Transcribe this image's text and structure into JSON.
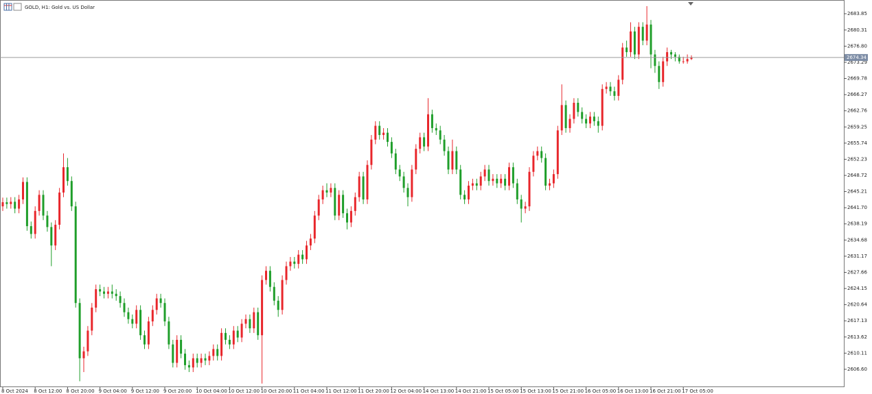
{
  "chart_data": {
    "type": "candlestick",
    "title": "GOLD, H1:  Gold vs. US Dollar",
    "up_color": "#e8262b",
    "down_color": "#1f9e2a",
    "price_line_color": "#9a9a9a",
    "current_price": 2674.34,
    "ylim": [
      2602.72,
      2686.83
    ],
    "yticks": [
      2683.85,
      2680.31,
      {
        "value": 2676.8,
        "label": "2676.80"
      },
      2673.29,
      2669.78,
      2666.27,
      2662.76,
      2659.25,
      2655.74,
      2652.23,
      2648.72,
      2645.21,
      {
        "value": 2641.7,
        "label": "2641.70"
      },
      2638.19,
      2634.68,
      2631.17,
      2627.66,
      2624.15,
      2620.64,
      2617.13,
      2613.62,
      2610.11,
      {
        "value": 2606.6,
        "label": "2606.60"
      }
    ],
    "categories": [
      "8 Oct 2024",
      null,
      null,
      null,
      null,
      null,
      null,
      null,
      "8 Oct 12:00",
      null,
      null,
      null,
      null,
      null,
      null,
      null,
      "8 Oct 20:00",
      null,
      null,
      null,
      null,
      null,
      null,
      null,
      "9 Oct 04:00",
      null,
      null,
      null,
      null,
      null,
      null,
      null,
      "9 Oct 12:00",
      null,
      null,
      null,
      null,
      null,
      null,
      null,
      "9 Oct 20:00",
      null,
      null,
      null,
      null,
      null,
      null,
      null,
      "10 Oct 04:00",
      null,
      null,
      null,
      null,
      null,
      null,
      null,
      "10 Oct 12:00",
      null,
      null,
      null,
      null,
      null,
      null,
      null,
      "10 Oct 20:00",
      null,
      null,
      null,
      null,
      null,
      null,
      null,
      "11 Oct 04:00",
      null,
      null,
      null,
      null,
      null,
      null,
      null,
      "11 Oct 12:00",
      null,
      null,
      null,
      null,
      null,
      null,
      null,
      "11 Oct 20:00",
      null,
      null,
      null,
      null,
      null,
      null,
      null,
      "12 Oct 04:00",
      null,
      null,
      null,
      null,
      null,
      null,
      null,
      "14 Oct 13:00",
      null,
      null,
      null,
      null,
      null,
      null,
      null,
      "14 Oct 21:00",
      null,
      null,
      null,
      null,
      null,
      null,
      null,
      "15 Oct 05:00",
      null,
      null,
      null,
      null,
      null,
      null,
      null,
      "15 Oct 13:00",
      null,
      null,
      null,
      null,
      null,
      null,
      null,
      "15 Oct 21:00",
      null,
      null,
      null,
      null,
      null,
      null,
      null,
      "16 Oct 05:00",
      null,
      null,
      null,
      null,
      null,
      null,
      null,
      "16 Oct 13:00",
      null,
      null,
      null,
      null,
      null,
      null,
      null,
      "16 Oct 21:00",
      null,
      null,
      null,
      null,
      null,
      null,
      null,
      "17 Oct 05:00",
      null,
      null
    ],
    "open": [
      2642.0,
      2642.9,
      2642.5,
      2643.0,
      2641.5,
      2643.5,
      2647.3,
      2637.7,
      2636.0,
      2641.0,
      2644.5,
      2640.0,
      2637.5,
      2633.5,
      2638.0,
      2645.0,
      2650.5,
      2647.5,
      2642.0,
      2621.0,
      2609.0,
      2610.5,
      2615.0,
      2620.0,
      2624.0,
      2623.5,
      2623.0,
      2623.5,
      2623.0,
      2622.5,
      2621.0,
      2619.0,
      2617.5,
      2616.5,
      2619.5,
      2614.0,
      2612.0,
      2617.0,
      2619.5,
      2622.0,
      2621.0,
      2617.0,
      2612.0,
      2608.0,
      2613.0,
      2610.0,
      2607.5,
      2607.0,
      2609.0,
      2608.0,
      2609.0,
      2608.5,
      2609.5,
      2611.0,
      2609.5,
      2614.5,
      2613.0,
      2612.0,
      2615.0,
      2613.5,
      2616.5,
      2617.5,
      2615.5,
      2619.0,
      2614.0,
      2626.0,
      2628.0,
      2624.5,
      2621.5,
      2619.5,
      2626.0,
      2629.0,
      2630.0,
      2629.5,
      2631.5,
      2630.5,
      2633.5,
      2635.0,
      2640.0,
      2643.5,
      2645.5,
      2645.0,
      2646.0,
      2640.0,
      2644.5,
      2640.5,
      2638.5,
      2641.0,
      2644.0,
      2648.5,
      2643.5,
      2651.0,
      2656.5,
      2659.5,
      2657.5,
      2658.0,
      2656.0,
      2653.5,
      2650.0,
      2648.5,
      2646.0,
      2644.0,
      2650.0,
      2654.5,
      2657.0,
      2655.0,
      2662.0,
      2659.0,
      2658.5,
      2656.5,
      2654.0,
      2650.0,
      2654.0,
      2650.0,
      2644.5,
      2643.5,
      2646.5,
      2647.0,
      2646.5,
      2648.5,
      2650.0,
      2647.5,
      2648.0,
      2647.0,
      2648.0,
      2646.5,
      2650.5,
      2647.0,
      2643.5,
      2641.5,
      2642.0,
      2649.5,
      2653.0,
      2654.0,
      2652.5,
      2646.5,
      2647.0,
      2649.0,
      2658.5,
      2664.0,
      2659.0,
      2661.0,
      2664.5,
      2662.5,
      2661.0,
      2660.0,
      2661.5,
      2660.5,
      2659.5,
      2667.5,
      2668.0,
      2667.0,
      2666.0,
      2669.5,
      2676.5,
      2675.5,
      2680.0,
      2675.0,
      2681.0,
      2678.0,
      2681.5,
      2675.0,
      2672.5,
      2669.0,
      2673.5,
      2675.5,
      2675.0,
      2674.5,
      2673.5,
      2673.5,
      2674.0
    ],
    "high": [
      2643.9,
      2643.9,
      2644.0,
      2644.0,
      2644.5,
      2648.3,
      2648.3,
      2638.7,
      2642.0,
      2645.5,
      2645.5,
      2641.0,
      2638.5,
      2639.0,
      2646.0,
      2653.5,
      2652.5,
      2648.5,
      2643.0,
      2622.0,
      2611.5,
      2616.0,
      2621.0,
      2625.0,
      2625.0,
      2624.5,
      2624.5,
      2625.0,
      2624.0,
      2623.5,
      2622.0,
      2620.0,
      2618.5,
      2620.5,
      2620.5,
      2615.0,
      2618.0,
      2620.5,
      2623.0,
      2623.0,
      2622.0,
      2618.0,
      2613.0,
      2614.0,
      2614.0,
      2611.0,
      2608.5,
      2610.0,
      2610.0,
      2610.0,
      2610.0,
      2610.5,
      2612.0,
      2612.0,
      2615.5,
      2615.5,
      2614.0,
      2616.0,
      2616.0,
      2617.5,
      2618.5,
      2618.5,
      2620.0,
      2620.0,
      2627.0,
      2629.0,
      2629.0,
      2625.5,
      2622.5,
      2627.0,
      2630.0,
      2631.0,
      2631.0,
      2632.5,
      2632.5,
      2634.5,
      2636.0,
      2641.0,
      2644.5,
      2646.5,
      2647.0,
      2647.0,
      2647.0,
      2645.5,
      2645.5,
      2641.5,
      2642.0,
      2645.0,
      2649.5,
      2649.5,
      2652.0,
      2657.5,
      2660.5,
      2660.5,
      2659.0,
      2659.0,
      2657.0,
      2654.5,
      2651.0,
      2649.5,
      2647.0,
      2651.0,
      2655.5,
      2658.0,
      2658.0,
      2665.5,
      2663.0,
      2660.0,
      2659.5,
      2657.5,
      2655.0,
      2656.5,
      2655.0,
      2651.0,
      2645.5,
      2647.5,
      2648.0,
      2648.0,
      2649.5,
      2651.0,
      2651.0,
      2649.0,
      2649.0,
      2649.0,
      2649.0,
      2651.5,
      2651.5,
      2648.0,
      2644.5,
      2643.0,
      2650.5,
      2654.0,
      2655.0,
      2655.0,
      2653.5,
      2648.0,
      2650.0,
      2659.5,
      2668.5,
      2665.0,
      2662.0,
      2665.5,
      2665.5,
      2663.5,
      2662.0,
      2662.5,
      2662.5,
      2661.5,
      2668.5,
      2669.0,
      2669.0,
      2668.0,
      2670.5,
      2677.5,
      2678.0,
      2682.0,
      2681.0,
      2682.0,
      2682.0,
      2685.5,
      2682.5,
      2676.0,
      2673.5,
      2674.5,
      2676.5,
      2676.0,
      2675.5,
      2675.0,
      2674.5,
      2675.0,
      2674.8
    ],
    "low": [
      2641.0,
      2641.5,
      2641.5,
      2640.5,
      2640.5,
      2642.5,
      2636.7,
      2635.0,
      2635.0,
      2640.0,
      2639.0,
      2636.5,
      2629.0,
      2632.5,
      2637.0,
      2644.0,
      2646.5,
      2641.0,
      2620.0,
      2604.0,
      2606.0,
      2609.5,
      2614.0,
      2619.0,
      2622.5,
      2622.0,
      2622.0,
      2622.0,
      2621.5,
      2620.0,
      2618.0,
      2616.5,
      2615.5,
      2615.5,
      2613.0,
      2611.0,
      2611.0,
      2616.0,
      2618.5,
      2620.0,
      2616.0,
      2611.0,
      2607.0,
      2607.0,
      2609.0,
      2606.5,
      2606.0,
      2606.0,
      2607.0,
      2607.0,
      2607.5,
      2607.5,
      2608.5,
      2608.5,
      2608.5,
      2612.0,
      2611.0,
      2611.0,
      2612.5,
      2612.5,
      2615.5,
      2614.5,
      2614.5,
      2613.0,
      2603.5,
      2625.0,
      2623.5,
      2620.5,
      2618.0,
      2618.5,
      2625.0,
      2628.0,
      2628.5,
      2628.5,
      2629.5,
      2629.5,
      2632.5,
      2634.0,
      2639.0,
      2642.5,
      2644.0,
      2644.0,
      2639.0,
      2639.0,
      2639.5,
      2637.0,
      2637.5,
      2640.0,
      2643.0,
      2642.5,
      2642.5,
      2650.0,
      2655.5,
      2656.5,
      2656.5,
      2655.0,
      2652.5,
      2649.0,
      2647.5,
      2645.0,
      2642.0,
      2643.0,
      2649.0,
      2653.5,
      2654.0,
      2654.0,
      2658.0,
      2657.5,
      2655.5,
      2653.0,
      2649.0,
      2649.0,
      2649.0,
      2643.5,
      2642.5,
      2642.5,
      2645.5,
      2645.5,
      2645.5,
      2647.5,
      2646.5,
      2646.5,
      2646.0,
      2646.0,
      2645.5,
      2645.5,
      2646.0,
      2642.5,
      2638.5,
      2640.5,
      2641.0,
      2648.5,
      2652.0,
      2651.5,
      2645.5,
      2645.5,
      2646.0,
      2648.0,
      2657.5,
      2658.0,
      2658.0,
      2660.0,
      2661.5,
      2660.0,
      2659.0,
      2659.0,
      2659.5,
      2658.0,
      2658.5,
      2666.5,
      2666.0,
      2665.0,
      2665.0,
      2668.5,
      2674.5,
      2674.5,
      2674.0,
      2674.0,
      2677.0,
      2677.0,
      2672.0,
      2671.0,
      2667.5,
      2668.0,
      2672.5,
      2674.0,
      2673.5,
      2673.0,
      2673.0,
      2673.0,
      2673.8
    ],
    "close": [
      2642.9,
      2642.5,
      2643.0,
      2641.5,
      2643.5,
      2647.3,
      2637.7,
      2636.0,
      2641.0,
      2644.5,
      2640.0,
      2637.5,
      2633.5,
      2638.0,
      2645.0,
      2650.5,
      2647.5,
      2642.0,
      2621.0,
      2609.0,
      2610.5,
      2615.0,
      2620.0,
      2624.0,
      2623.5,
      2623.0,
      2623.5,
      2623.0,
      2622.5,
      2621.0,
      2619.0,
      2617.5,
      2616.5,
      2619.5,
      2614.0,
      2612.0,
      2617.0,
      2619.5,
      2622.0,
      2621.0,
      2617.0,
      2612.0,
      2608.0,
      2613.0,
      2610.0,
      2607.5,
      2607.0,
      2609.0,
      2608.0,
      2609.0,
      2608.5,
      2609.5,
      2611.0,
      2609.5,
      2614.5,
      2613.0,
      2612.0,
      2615.0,
      2613.5,
      2616.5,
      2617.5,
      2615.5,
      2619.0,
      2614.0,
      2626.0,
      2628.0,
      2624.5,
      2621.5,
      2619.5,
      2626.0,
      2629.0,
      2630.0,
      2629.5,
      2631.5,
      2630.5,
      2633.5,
      2635.0,
      2640.0,
      2643.5,
      2645.5,
      2645.0,
      2646.0,
      2640.0,
      2644.5,
      2640.5,
      2638.5,
      2641.0,
      2644.0,
      2648.5,
      2643.5,
      2651.0,
      2656.5,
      2659.5,
      2657.5,
      2658.0,
      2656.0,
      2653.5,
      2650.0,
      2648.5,
      2646.0,
      2644.0,
      2650.0,
      2654.5,
      2657.0,
      2655.0,
      2662.0,
      2659.0,
      2658.5,
      2656.5,
      2654.0,
      2650.0,
      2654.0,
      2650.0,
      2644.5,
      2643.5,
      2646.5,
      2647.0,
      2646.5,
      2648.5,
      2650.0,
      2647.5,
      2648.0,
      2647.0,
      2648.0,
      2646.5,
      2650.5,
      2647.0,
      2643.5,
      2641.5,
      2642.0,
      2649.5,
      2653.0,
      2654.0,
      2652.5,
      2646.5,
      2647.0,
      2649.0,
      2658.5,
      2664.0,
      2659.0,
      2661.0,
      2664.5,
      2662.5,
      2661.0,
      2660.0,
      2661.5,
      2660.5,
      2659.5,
      2667.5,
      2668.0,
      2667.0,
      2666.0,
      2669.5,
      2676.5,
      2675.5,
      2680.0,
      2675.0,
      2681.0,
      2678.0,
      2681.5,
      2675.0,
      2672.5,
      2669.0,
      2673.5,
      2675.5,
      2675.0,
      2674.5,
      2673.5,
      2673.5,
      2674.0,
      2674.3
    ]
  }
}
